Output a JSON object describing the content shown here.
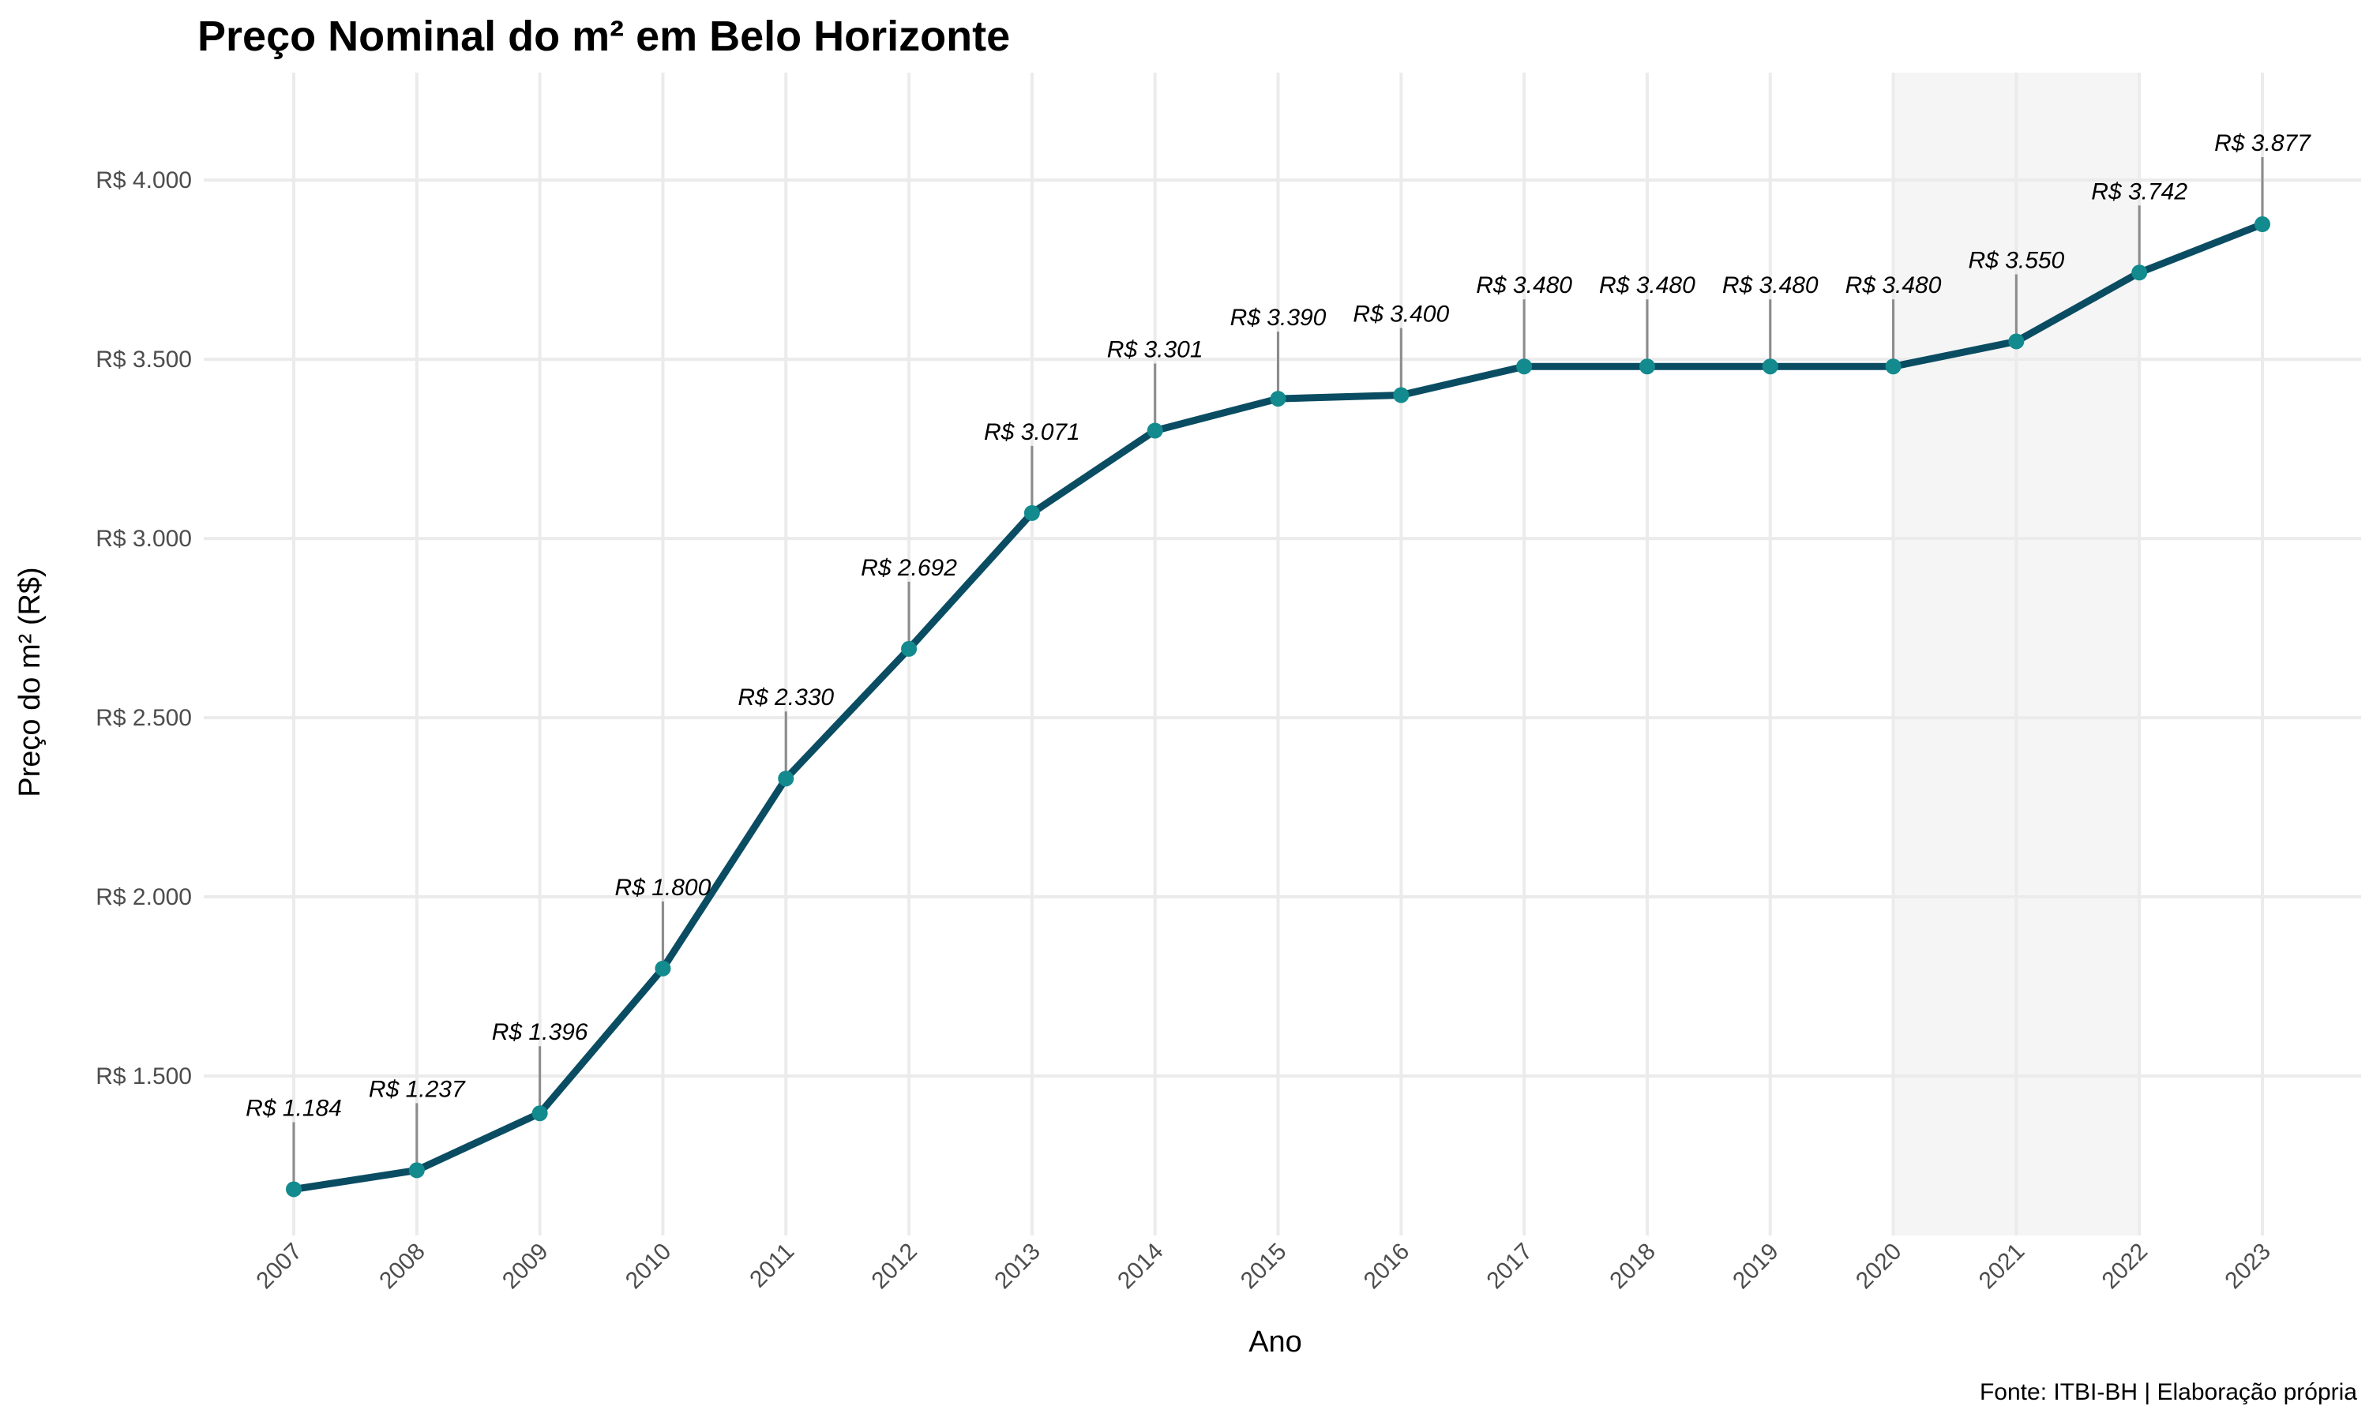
{
  "chart_data": {
    "type": "line",
    "title": "Preço Nominal do m² em Belo Horizonte",
    "xlabel": "Ano",
    "ylabel": "Preço do m² (R$)",
    "caption": "Fonte: ITBI-BH | Elaboração própria",
    "categories": [
      "2007",
      "2008",
      "2009",
      "2010",
      "2011",
      "2012",
      "2013",
      "2014",
      "2015",
      "2016",
      "2017",
      "2018",
      "2019",
      "2020",
      "2021",
      "2022",
      "2023"
    ],
    "values": [
      1184,
      1237,
      1396,
      1800,
      2330,
      2692,
      3071,
      3301,
      3390,
      3400,
      3480,
      3480,
      3480,
      3480,
      3550,
      3742,
      3877
    ],
    "data_labels": [
      "R$ 1.184",
      "R$ 1.237",
      "R$ 1.396",
      "R$ 1.800",
      "R$ 2.330",
      "R$ 2.692",
      "R$ 3.071",
      "R$ 3.301",
      "R$ 3.390",
      "R$ 3.400",
      "R$ 3.480",
      "R$ 3.480",
      "R$ 3.480",
      "R$ 3.480",
      "R$ 3.550",
      "R$ 3.742",
      "R$ 3.877"
    ],
    "yticks": [
      1500,
      2000,
      2500,
      3000,
      3500,
      4000
    ],
    "ytick_labels": [
      "R$ 1.500",
      "R$ 2.000",
      "R$ 2.500",
      "R$ 3.000",
      "R$ 3.500",
      "R$ 4.000"
    ],
    "ylim": [
      1055,
      4300
    ],
    "highlight_band": [
      "2020",
      "2022"
    ],
    "grid": true,
    "legend": "none",
    "colors": {
      "line": "#0a4d63",
      "point": "#138a8e",
      "label_segment": "#8c8c8c",
      "band": "#f5f5f5"
    }
  }
}
